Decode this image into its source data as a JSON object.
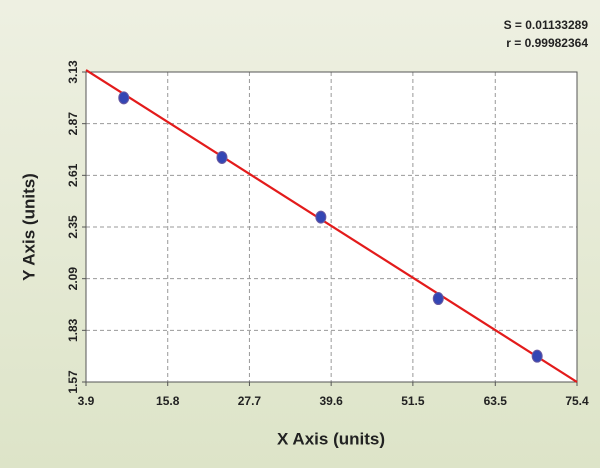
{
  "chart_data": {
    "type": "scatter",
    "annotations": [
      "S = 0.01133289",
      "r = 0.99982364"
    ],
    "xlabel": "X Axis (units)",
    "ylabel": "Y Axis (units)",
    "x": [
      9.4,
      23.7,
      38.1,
      55.2,
      69.6
    ],
    "values": [
      3.0,
      2.7,
      2.4,
      1.99,
      1.7
    ],
    "color": "#3446b4",
    "fit": {
      "x": [
        3.9,
        75.4
      ],
      "y": [
        3.14,
        1.57
      ],
      "color": "#e31b1b"
    },
    "xlim": [
      3.9,
      75.4
    ],
    "xticks": [
      3.9,
      15.8,
      27.7,
      39.6,
      51.5,
      63.5,
      75.4
    ],
    "ylim": [
      1.57,
      3.13
    ],
    "yticks": [
      1.57,
      1.83,
      2.09,
      2.35,
      2.61,
      2.87,
      3.13
    ],
    "grid": true
  }
}
